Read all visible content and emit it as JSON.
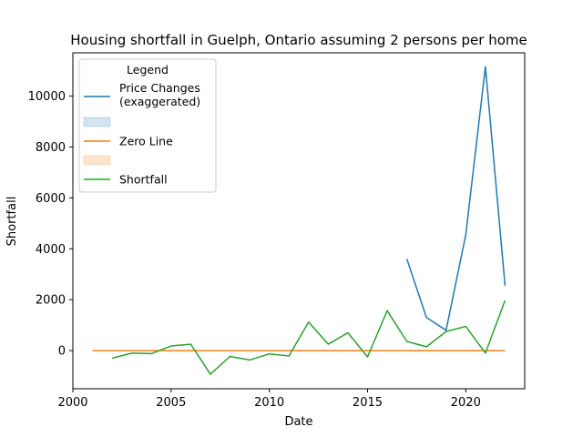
{
  "chart_data": {
    "type": "line",
    "title": "Housing shortfall in Guelph, Ontario assuming 2 persons per home",
    "xlabel": "Date",
    "ylabel": "Shortfall",
    "xlim": [
      2000,
      2023
    ],
    "ylim": [
      -1500,
      11700
    ],
    "x_ticks": [
      2000,
      2005,
      2010,
      2015,
      2020
    ],
    "y_ticks": [
      0,
      2000,
      4000,
      6000,
      8000,
      10000
    ],
    "grid": false,
    "legend": {
      "title": "Legend",
      "placement": "top-left",
      "entries": [
        {
          "kind": "line",
          "label": [
            "Price Changes",
            "(exaggerated)"
          ],
          "color": "#1f77b4"
        },
        {
          "kind": "patch",
          "label": [
            ""
          ],
          "color": "#1f77b4"
        },
        {
          "kind": "line",
          "label": [
            "Zero Line"
          ],
          "color": "#ff7f0e"
        },
        {
          "kind": "patch",
          "label": [
            ""
          ],
          "color": "#ff7f0e"
        },
        {
          "kind": "line",
          "label": [
            "Shortfall"
          ],
          "color": "#2ca02c"
        }
      ]
    },
    "series": [
      {
        "name": "Price Changes (exaggerated)",
        "color": "#1f77b4",
        "x": [
          2017,
          2018,
          2019,
          2020,
          2021,
          2022
        ],
        "y": [
          3600,
          1300,
          800,
          4550,
          11150,
          2550
        ]
      },
      {
        "name": "Zero Line",
        "color": "#ff7f0e",
        "x": [
          2001,
          2022
        ],
        "y": [
          0,
          0
        ]
      },
      {
        "name": "Shortfall",
        "color": "#2ca02c",
        "x": [
          2002,
          2003,
          2004,
          2005,
          2006,
          2007,
          2008,
          2009,
          2010,
          2011,
          2012,
          2013,
          2014,
          2015,
          2016,
          2017,
          2018,
          2019,
          2020,
          2021,
          2022
        ],
        "y": [
          -300,
          -100,
          -120,
          180,
          250,
          -930,
          -230,
          -370,
          -130,
          -210,
          1120,
          250,
          700,
          -250,
          1570,
          360,
          150,
          750,
          950,
          -100,
          1970
        ]
      }
    ]
  }
}
